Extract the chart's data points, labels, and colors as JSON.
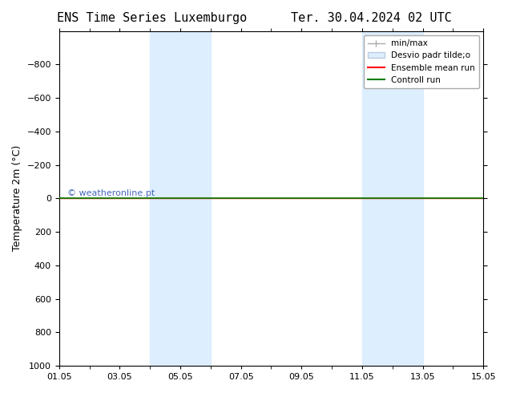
{
  "title_left": "ENS Time Series Luxemburgo",
  "title_right": "Ter. 30.04.2024 02 UTC",
  "ylabel": "Temperature 2m (°C)",
  "watermark": "© weatheronline.pt",
  "ylim_bottom": 1000,
  "ylim_top": -1000,
  "yticks": [
    -800,
    -600,
    -400,
    -200,
    0,
    200,
    400,
    600,
    800,
    1000
  ],
  "xstart": "2024-05-01",
  "xend": "2024-05-15",
  "xtick_labels": [
    "01.05",
    "03.05",
    "05.05",
    "07.05",
    "09.05",
    "11.05",
    "13.05",
    "15.05"
  ],
  "xtick_days": [
    1,
    3,
    5,
    7,
    9,
    11,
    13,
    15
  ],
  "shaded_bands": [
    {
      "start": "2024-05-04",
      "end": "2024-05-06"
    },
    {
      "start": "2024-05-11",
      "end": "2024-05-13"
    }
  ],
  "control_run_y": 0,
  "ensemble_mean_y": 0,
  "legend_entries": [
    {
      "label": "min/max",
      "color": "#aaaaaa",
      "linestyle": "-"
    },
    {
      "label": "Desvio padr tilde;o",
      "color": "#ccddee",
      "linestyle": "-",
      "linewidth": 8
    },
    {
      "label": "Ensemble mean run",
      "color": "red",
      "linestyle": "-"
    },
    {
      "label": "Controll run",
      "color": "green",
      "linestyle": "-"
    }
  ],
  "bg_color": "#ffffff",
  "band_color": "#ddeeff",
  "title_fontsize": 11,
  "axis_fontsize": 9,
  "tick_fontsize": 8,
  "watermark_color": "#4466bb"
}
